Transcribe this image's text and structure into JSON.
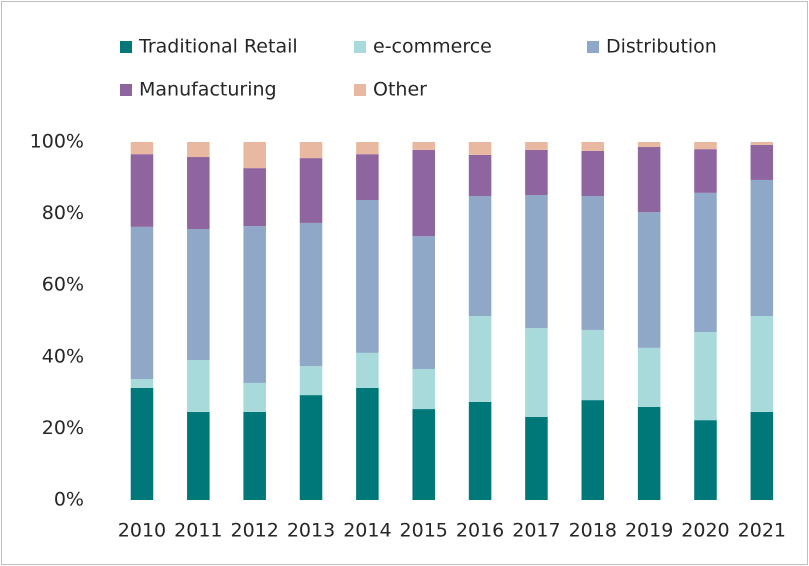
{
  "chart_data": {
    "type": "bar",
    "stacked": true,
    "categories": [
      "2010",
      "2011",
      "2012",
      "2013",
      "2014",
      "2015",
      "2016",
      "2017",
      "2018",
      "2019",
      "2020",
      "2021"
    ],
    "series": [
      {
        "name": "Traditional Retail",
        "color": "#00787a",
        "values": [
          31.3,
          24.6,
          24.6,
          29.3,
          31.3,
          25.4,
          27.4,
          23.2,
          27.9,
          26,
          22.3,
          24.6
        ]
      },
      {
        "name": "e-commerce",
        "color": "#a8dadb",
        "values": [
          2.5,
          14.5,
          8.1,
          8.1,
          9.8,
          11.2,
          24,
          24.8,
          19.6,
          16.5,
          24.6,
          26.8
        ]
      },
      {
        "name": "Distribution",
        "color": "#8fa8c8",
        "values": [
          42.5,
          36.6,
          43.8,
          40,
          42.7,
          37.1,
          33.5,
          37.2,
          37.4,
          37.9,
          38.9,
          38
        ]
      },
      {
        "name": "Manufacturing",
        "color": "#8e659f",
        "values": [
          20.3,
          20.1,
          16.2,
          18.1,
          12.8,
          24.1,
          11.5,
          12.6,
          12.6,
          18.2,
          12.2,
          9.8
        ]
      },
      {
        "name": "Other",
        "color": "#e8b9a0",
        "values": [
          3.4,
          4.2,
          7.3,
          4.5,
          3.4,
          2.2,
          3.6,
          2.2,
          2.5,
          1.4,
          2,
          0.8
        ]
      }
    ],
    "ylim": [
      0,
      100
    ],
    "yticks": [
      {
        "value": 0,
        "label": "0%"
      },
      {
        "value": 20,
        "label": "20%"
      },
      {
        "value": 40,
        "label": "40%"
      },
      {
        "value": 60,
        "label": "60%"
      },
      {
        "value": 80,
        "label": "80%"
      },
      {
        "value": 100,
        "label": "100%"
      }
    ],
    "grid": false,
    "legend": "top"
  }
}
